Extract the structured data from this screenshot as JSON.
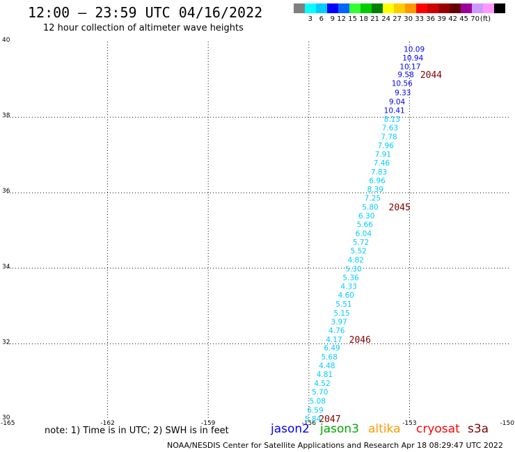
{
  "header": {
    "title": "12:00 – 23:59 UTC 04/16/2022",
    "subtitle": "12 hour collection of altimeter wave heights"
  },
  "colorbar": {
    "colors": [
      "#808080",
      "#00ffff",
      "#00ccff",
      "#0000ff",
      "#0066ff",
      "#33ff33",
      "#00cc00",
      "#008000",
      "#ffff00",
      "#ffcc00",
      "#ff9900",
      "#ff0000",
      "#cc0000",
      "#990000",
      "#660000",
      "#990099",
      "#cc99ff",
      "#ff99ff",
      "#000000"
    ],
    "labels": [
      "3",
      "6",
      "9",
      "12",
      "15",
      "18",
      "21",
      "24",
      "27",
      "30",
      "33",
      "36",
      "39",
      "42",
      "45",
      "70",
      "(ft)"
    ]
  },
  "axes": {
    "x_ticks": [
      "-165",
      "-162",
      "-159",
      "-156",
      "-153",
      "-150"
    ],
    "y_ticks": [
      "40",
      "38",
      "36",
      "34",
      "32",
      "30"
    ]
  },
  "swh_points": [
    {
      "v": "10.09",
      "lon": -152.86,
      "lat": 39.81,
      "c": "#0000ff"
    },
    {
      "v": "10.94",
      "lon": -152.9,
      "lat": 39.58,
      "c": "#0000ff"
    },
    {
      "v": "10.17",
      "lon": -152.98,
      "lat": 39.35,
      "c": "#0000ff"
    },
    {
      "v": "9.58",
      "lon": -153.11,
      "lat": 39.13,
      "c": "#0000ff"
    },
    {
      "v": "10.56",
      "lon": -153.22,
      "lat": 38.9,
      "c": "#0000ff"
    },
    {
      "v": "9.33",
      "lon": -153.2,
      "lat": 38.66,
      "c": "#0000ff"
    },
    {
      "v": "9.04",
      "lon": -153.37,
      "lat": 38.42,
      "c": "#0000ff"
    },
    {
      "v": "10.41",
      "lon": -153.45,
      "lat": 38.19,
      "c": "#0000ff"
    },
    {
      "v": "8.13",
      "lon": -153.52,
      "lat": 37.96,
      "c": "#00ccff"
    },
    {
      "v": "7.63",
      "lon": -153.58,
      "lat": 37.73,
      "c": "#00ccff"
    },
    {
      "v": "7.78",
      "lon": -153.61,
      "lat": 37.49,
      "c": "#00ccff"
    },
    {
      "v": "7.96",
      "lon": -153.71,
      "lat": 37.26,
      "c": "#00ccff"
    },
    {
      "v": "7.91",
      "lon": -153.79,
      "lat": 37.03,
      "c": "#00ccff"
    },
    {
      "v": "7.46",
      "lon": -153.83,
      "lat": 36.8,
      "c": "#00ccff"
    },
    {
      "v": "7.83",
      "lon": -153.91,
      "lat": 36.56,
      "c": "#00ccff"
    },
    {
      "v": "6.96",
      "lon": -153.96,
      "lat": 36.33,
      "c": "#00ccff"
    },
    {
      "v": "8.39",
      "lon": -154.02,
      "lat": 36.1,
      "c": "#00ccff"
    },
    {
      "v": "7.25",
      "lon": -154.1,
      "lat": 35.87,
      "c": "#00ccff"
    },
    {
      "v": "5.80",
      "lon": -154.17,
      "lat": 35.63,
      "c": "#00ccff"
    },
    {
      "v": "6.30",
      "lon": -154.28,
      "lat": 35.4,
      "c": "#00ccff"
    },
    {
      "v": "5.66",
      "lon": -154.33,
      "lat": 35.17,
      "c": "#00ccff"
    },
    {
      "v": "6.04",
      "lon": -154.37,
      "lat": 34.93,
      "c": "#00ccff"
    },
    {
      "v": "5.72",
      "lon": -154.45,
      "lat": 34.7,
      "c": "#00ccff"
    },
    {
      "v": "5.52",
      "lon": -154.52,
      "lat": 34.47,
      "c": "#00ccff"
    },
    {
      "v": "4.82",
      "lon": -154.6,
      "lat": 34.23,
      "c": "#00ccff"
    },
    {
      "v": "5.30",
      "lon": -154.67,
      "lat": 33.99,
      "c": "#00ccff"
    },
    {
      "v": "5.36",
      "lon": -154.75,
      "lat": 33.76,
      "c": "#00ccff"
    },
    {
      "v": "4.33",
      "lon": -154.81,
      "lat": 33.53,
      "c": "#00ccff"
    },
    {
      "v": "4.60",
      "lon": -154.89,
      "lat": 33.3,
      "c": "#00ccff"
    },
    {
      "v": "5.51",
      "lon": -154.96,
      "lat": 33.06,
      "c": "#00ccff"
    },
    {
      "v": "5.15",
      "lon": -155.02,
      "lat": 32.82,
      "c": "#00ccff"
    },
    {
      "v": "3.97",
      "lon": -155.1,
      "lat": 32.59,
      "c": "#00ccff"
    },
    {
      "v": "4.76",
      "lon": -155.17,
      "lat": 32.36,
      "c": "#00ccff"
    },
    {
      "v": "4.17",
      "lon": -155.25,
      "lat": 32.12,
      "c": "#00ccff"
    },
    {
      "v": "6.49",
      "lon": -155.31,
      "lat": 31.9,
      "c": "#00ccff"
    },
    {
      "v": "5.68",
      "lon": -155.39,
      "lat": 31.66,
      "c": "#00ccff"
    },
    {
      "v": "4.48",
      "lon": -155.46,
      "lat": 31.43,
      "c": "#00ccff"
    },
    {
      "v": "4.81",
      "lon": -155.53,
      "lat": 31.2,
      "c": "#00ccff"
    },
    {
      "v": "4.52",
      "lon": -155.6,
      "lat": 30.96,
      "c": "#00ccff"
    },
    {
      "v": "5.70",
      "lon": -155.67,
      "lat": 30.73,
      "c": "#00ccff"
    },
    {
      "v": "5.08",
      "lon": -155.74,
      "lat": 30.49,
      "c": "#00ccff"
    },
    {
      "v": "6.59",
      "lon": -155.81,
      "lat": 30.25,
      "c": "#00ccff"
    },
    {
      "v": "5.84",
      "lon": -155.88,
      "lat": 30.02,
      "c": "#00ccff"
    }
  ],
  "pass_labels": [
    {
      "id": "2044",
      "lon": -152.68,
      "lat": 39.13
    },
    {
      "id": "2045",
      "lon": -153.62,
      "lat": 35.63
    },
    {
      "id": "2046",
      "lon": -154.8,
      "lat": 32.12
    },
    {
      "id": "2047",
      "lon": -155.7,
      "lat": 30.02
    }
  ],
  "note": "note:  1) Time is in UTC; 2) SWH is in feet",
  "satellites": [
    {
      "name": "jason2",
      "color": "#0000ff"
    },
    {
      "name": "jason3",
      "color": "#00aa00"
    },
    {
      "name": "altika",
      "color": "#ff9900"
    },
    {
      "name": "cryosat",
      "color": "#ff0000"
    },
    {
      "name": "s3a",
      "color": "#800000"
    }
  ],
  "footer": "NOAA/NESDIS Center for Satellite Applications and Research     Apr 18 08:29:47 UTC 2022"
}
